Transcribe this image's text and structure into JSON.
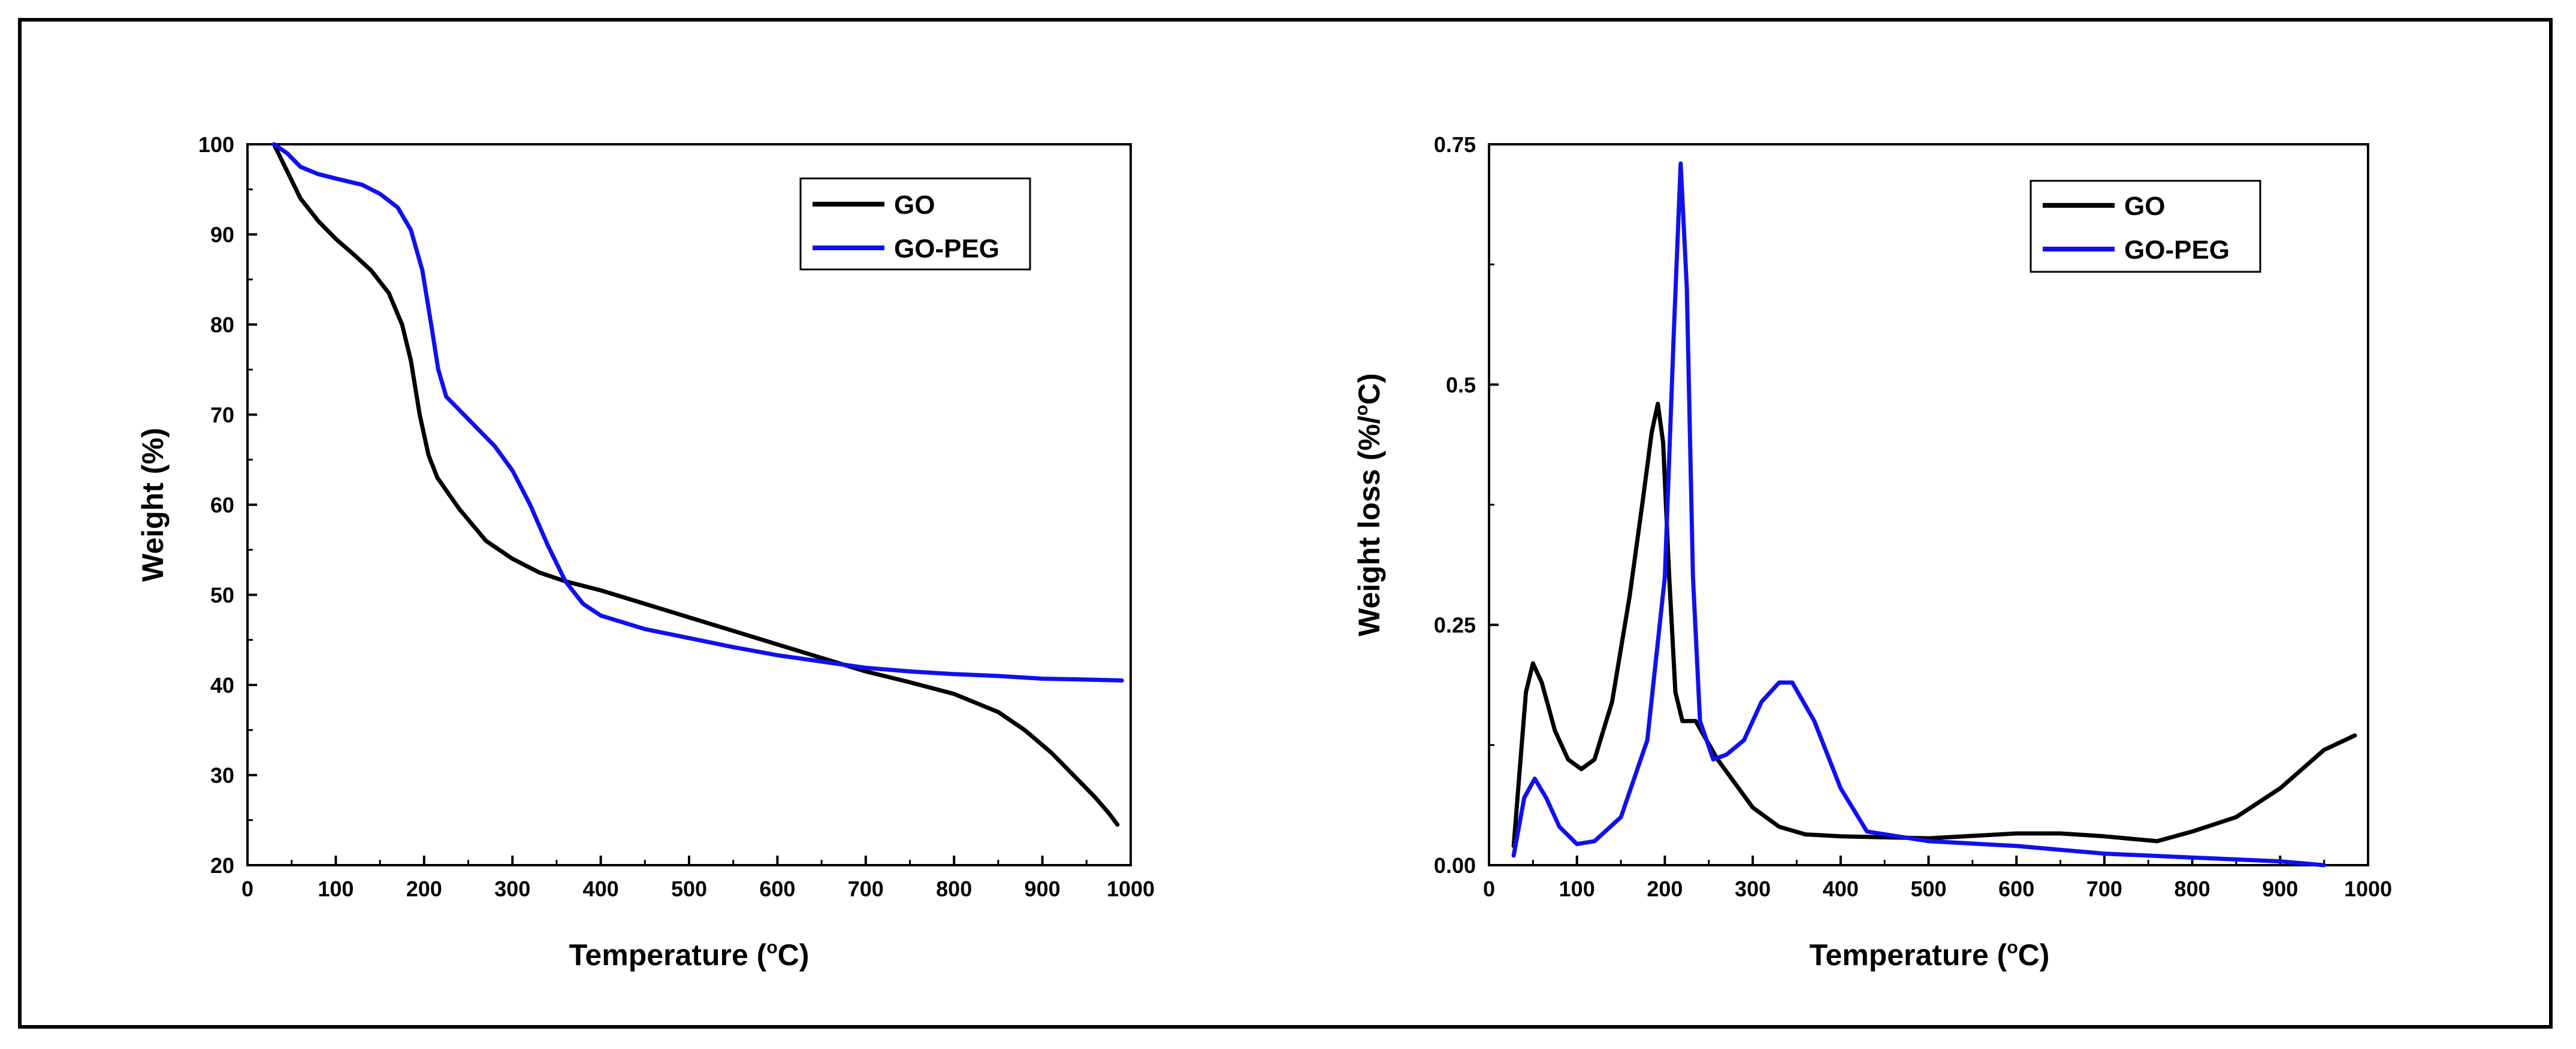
{
  "colors": {
    "GO": "#000000",
    "GO-PEG": "#1010ee"
  },
  "chart_data": [
    {
      "type": "line",
      "xlabel": "Temperature (",
      "xlabel_sup": "o",
      "xlabel_end": "C)",
      "ylabel": "Weight (%)",
      "xlim": [
        0,
        1000
      ],
      "ylim": [
        20,
        100
      ],
      "x_ticks": [
        "0",
        "100",
        "200",
        "300",
        "400",
        "500",
        "600",
        "700",
        "800",
        "900",
        "1000"
      ],
      "y_ticks": [
        "20",
        "30",
        "40",
        "50",
        "60",
        "70",
        "80",
        "90",
        "100"
      ],
      "legend": [
        "GO",
        "GO-PEG"
      ],
      "series": [
        {
          "name": "GO",
          "points": [
            [
              30,
              100
            ],
            [
              45,
              97
            ],
            [
              60,
              94
            ],
            [
              80,
              91.5
            ],
            [
              100,
              89.5
            ],
            [
              120,
              87.8
            ],
            [
              140,
              86
            ],
            [
              160,
              83.5
            ],
            [
              175,
              80
            ],
            [
              185,
              76
            ],
            [
              195,
              70
            ],
            [
              205,
              65.5
            ],
            [
              215,
              63
            ],
            [
              240,
              59.5
            ],
            [
              270,
              56
            ],
            [
              300,
              54
            ],
            [
              330,
              52.5
            ],
            [
              360,
              51.5
            ],
            [
              400,
              50.5
            ],
            [
              450,
              49
            ],
            [
              500,
              47.5
            ],
            [
              550,
              46
            ],
            [
              600,
              44.5
            ],
            [
              650,
              43
            ],
            [
              700,
              41.5
            ],
            [
              750,
              40.3
            ],
            [
              800,
              39
            ],
            [
              850,
              37
            ],
            [
              880,
              35
            ],
            [
              910,
              32.5
            ],
            [
              940,
              29.5
            ],
            [
              960,
              27.5
            ],
            [
              975,
              25.8
            ],
            [
              985,
              24.5
            ]
          ]
        },
        {
          "name": "GO-PEG",
          "points": [
            [
              30,
              100
            ],
            [
              45,
              99
            ],
            [
              60,
              97.5
            ],
            [
              80,
              96.7
            ],
            [
              100,
              96.2
            ],
            [
              130,
              95.5
            ],
            [
              150,
              94.5
            ],
            [
              170,
              93
            ],
            [
              185,
              90.5
            ],
            [
              198,
              86
            ],
            [
              208,
              80
            ],
            [
              216,
              75
            ],
            [
              225,
              72
            ],
            [
              240,
              70.5
            ],
            [
              260,
              68.5
            ],
            [
              280,
              66.5
            ],
            [
              300,
              63.8
            ],
            [
              320,
              60
            ],
            [
              340,
              55.5
            ],
            [
              360,
              51.5
            ],
            [
              380,
              49
            ],
            [
              400,
              47.7
            ],
            [
              450,
              46.2
            ],
            [
              500,
              45.2
            ],
            [
              550,
              44.2
            ],
            [
              600,
              43.3
            ],
            [
              650,
              42.6
            ],
            [
              700,
              41.9
            ],
            [
              750,
              41.5
            ],
            [
              800,
              41.2
            ],
            [
              850,
              41
            ],
            [
              900,
              40.7
            ],
            [
              950,
              40.6
            ],
            [
              990,
              40.5
            ]
          ]
        }
      ]
    },
    {
      "type": "line",
      "xlabel": "Temperature (",
      "xlabel_sup": "o",
      "xlabel_end": "C)",
      "ylabel": "Weight loss (%/",
      "ylabel_sup": "o",
      "ylabel_end": "C)",
      "xlim": [
        0,
        1000
      ],
      "ylim": [
        0,
        0.75
      ],
      "x_ticks": [
        "0",
        "100",
        "200",
        "300",
        "400",
        "500",
        "600",
        "700",
        "800",
        "900",
        "1000"
      ],
      "y_ticks": [
        "0.00",
        "0.25",
        "0.5",
        "0.75"
      ],
      "y_tick_values": [
        0,
        0.25,
        0.5,
        0.75
      ],
      "legend": [
        "GO",
        "GO-PEG"
      ],
      "series": [
        {
          "name": "GO",
          "points": [
            [
              28,
              0.02
            ],
            [
              35,
              0.1
            ],
            [
              42,
              0.18
            ],
            [
              50,
              0.21
            ],
            [
              60,
              0.19
            ],
            [
              75,
              0.14
            ],
            [
              90,
              0.11
            ],
            [
              105,
              0.1
            ],
            [
              120,
              0.11
            ],
            [
              140,
              0.17
            ],
            [
              160,
              0.28
            ],
            [
              175,
              0.38
            ],
            [
              185,
              0.45
            ],
            [
              192,
              0.48
            ],
            [
              198,
              0.44
            ],
            [
              205,
              0.3
            ],
            [
              212,
              0.18
            ],
            [
              220,
              0.15
            ],
            [
              235,
              0.15
            ],
            [
              260,
              0.11
            ],
            [
              300,
              0.06
            ],
            [
              330,
              0.04
            ],
            [
              360,
              0.032
            ],
            [
              400,
              0.03
            ],
            [
              500,
              0.028
            ],
            [
              600,
              0.033
            ],
            [
              650,
              0.033
            ],
            [
              700,
              0.03
            ],
            [
              760,
              0.025
            ],
            [
              800,
              0.035
            ],
            [
              850,
              0.05
            ],
            [
              900,
              0.08
            ],
            [
              950,
              0.12
            ],
            [
              985,
              0.135
            ]
          ]
        },
        {
          "name": "GO-PEG",
          "points": [
            [
              28,
              0.01
            ],
            [
              40,
              0.07
            ],
            [
              52,
              0.09
            ],
            [
              65,
              0.07
            ],
            [
              80,
              0.04
            ],
            [
              100,
              0.022
            ],
            [
              120,
              0.025
            ],
            [
              150,
              0.05
            ],
            [
              180,
              0.13
            ],
            [
              200,
              0.3
            ],
            [
              210,
              0.55
            ],
            [
              218,
              0.73
            ],
            [
              225,
              0.6
            ],
            [
              232,
              0.3
            ],
            [
              240,
              0.15
            ],
            [
              255,
              0.11
            ],
            [
              270,
              0.115
            ],
            [
              290,
              0.13
            ],
            [
              310,
              0.17
            ],
            [
              330,
              0.19
            ],
            [
              345,
              0.19
            ],
            [
              370,
              0.15
            ],
            [
              400,
              0.08
            ],
            [
              430,
              0.035
            ],
            [
              500,
              0.025
            ],
            [
              600,
              0.02
            ],
            [
              700,
              0.012
            ],
            [
              800,
              0.008
            ],
            [
              900,
              0.004
            ],
            [
              950,
              0.0
            ]
          ]
        }
      ]
    }
  ]
}
